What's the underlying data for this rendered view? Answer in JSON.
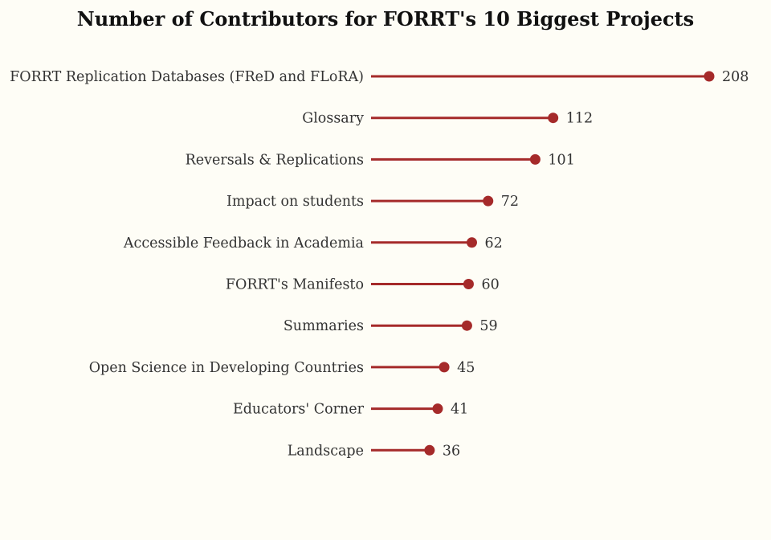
{
  "chart_data": {
    "type": "lollipop",
    "title": "Number of Contributors for FORRT's 10 Biggest Projects",
    "xlabel": "",
    "ylabel": "",
    "grid": false,
    "legend": "none",
    "xlim": [
      0,
      208
    ],
    "color": "#a52a2a",
    "categories": [
      "FORRT Replication Databases (FReD and FLoRA)",
      "Glossary",
      "Reversals & Replications",
      "Impact on students",
      "Accessible Feedback in Academia",
      "FORRT's Manifesto",
      "Summaries",
      "Open Science in Developing Countries",
      "Educators' Corner",
      "Landscape"
    ],
    "values": [
      208,
      112,
      101,
      72,
      62,
      60,
      59,
      45,
      41,
      36
    ],
    "data_labels": [
      "208",
      "112",
      "101",
      "72",
      "62",
      "60",
      "59",
      "45",
      "41",
      "36"
    ]
  }
}
